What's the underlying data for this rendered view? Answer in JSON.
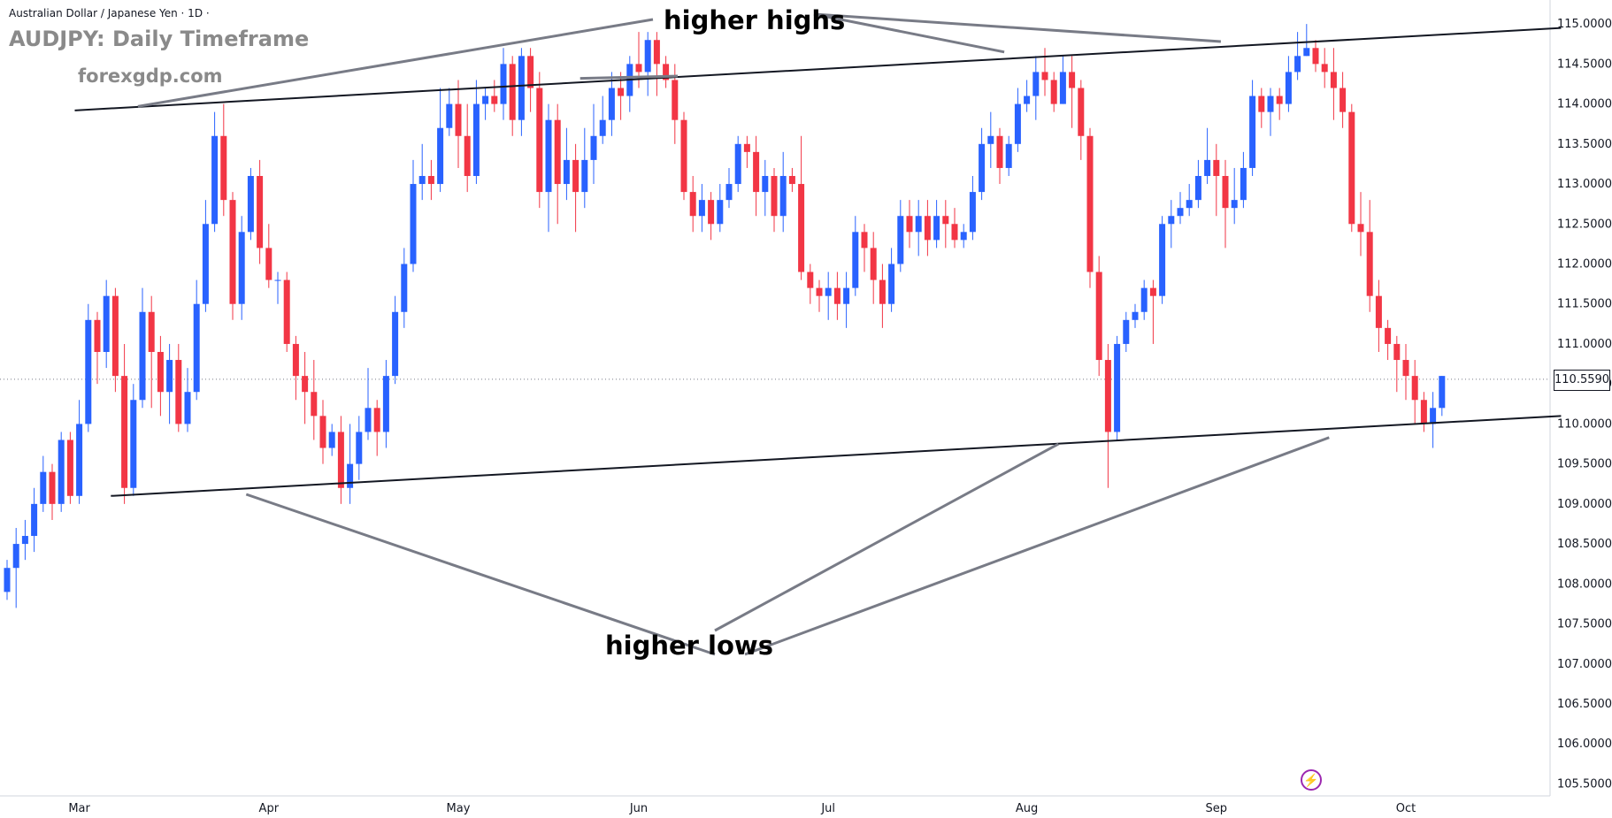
{
  "header": {
    "symbol_info": "Australian Dollar / Japanese Yen · 1D ·",
    "title": "AUDJPY: Daily Timeframe",
    "watermark": "forexgdp.com"
  },
  "annotations": {
    "higher_highs": "higher highs",
    "higher_lows": "higher lows"
  },
  "last_price_label": "110.5590",
  "colors": {
    "up": "#2962ff",
    "down": "#f23645",
    "trendline": "#131722",
    "pointer": "#787b86",
    "price_line": "#787b86"
  },
  "icon": "lightning-icon",
  "chart_data": {
    "type": "candlestick",
    "title": "AUDJPY: Daily Timeframe",
    "ylim": [
      105.35,
      115.3
    ],
    "x_tick_labels": [
      "Mar",
      "Apr",
      "May",
      "Jun",
      "Jul",
      "Aug",
      "Sep",
      "Oct"
    ],
    "x_tick_index": [
      8,
      29,
      50,
      70,
      91,
      113,
      134,
      155
    ],
    "y_ticks": [
      105.5,
      106.0,
      106.5,
      107.0,
      107.5,
      108.0,
      108.5,
      109.0,
      109.5,
      110.0,
      110.5,
      111.0,
      111.5,
      112.0,
      112.5,
      113.0,
      113.5,
      114.0,
      114.5,
      115.0
    ],
    "y_tick_labels": [
      "105.5000",
      "106.0000",
      "106.5000",
      "107.0000",
      "107.5000",
      "108.0000",
      "108.5000",
      "109.0000",
      "109.5000",
      "110.0000",
      "110.5000",
      "111.0000",
      "111.5000",
      "112.0000",
      "112.5000",
      "113.0000",
      "113.5000",
      "114.0000",
      "114.5000",
      "115.0000"
    ],
    "last_price": 110.559,
    "candles": [
      [
        107.9,
        108.2,
        107.8,
        108.3
      ],
      [
        108.2,
        108.5,
        107.7,
        108.7
      ],
      [
        108.5,
        108.6,
        108.3,
        108.8
      ],
      [
        108.6,
        109.0,
        108.4,
        109.2
      ],
      [
        109.0,
        109.4,
        108.9,
        109.6
      ],
      [
        109.4,
        109.0,
        108.8,
        109.5
      ],
      [
        109.0,
        109.8,
        108.9,
        109.9
      ],
      [
        109.8,
        109.1,
        109.0,
        109.9
      ],
      [
        109.1,
        110.0,
        109.0,
        110.3
      ],
      [
        110.0,
        111.3,
        109.9,
        111.5
      ],
      [
        111.3,
        110.9,
        110.5,
        111.4
      ],
      [
        110.9,
        111.6,
        110.7,
        111.8
      ],
      [
        111.6,
        110.6,
        110.4,
        111.7
      ],
      [
        110.6,
        109.2,
        109.0,
        111.0
      ],
      [
        109.2,
        110.3,
        109.1,
        110.5
      ],
      [
        110.3,
        111.4,
        110.2,
        111.7
      ],
      [
        111.4,
        110.9,
        110.2,
        111.6
      ],
      [
        110.9,
        110.4,
        110.1,
        111.1
      ],
      [
        110.4,
        110.8,
        110.0,
        111.0
      ],
      [
        110.8,
        110.0,
        109.9,
        111.0
      ],
      [
        110.0,
        110.4,
        109.9,
        110.7
      ],
      [
        110.4,
        111.5,
        110.3,
        111.8
      ],
      [
        111.5,
        112.5,
        111.4,
        112.8
      ],
      [
        112.5,
        113.6,
        112.4,
        113.9
      ],
      [
        113.6,
        112.8,
        112.6,
        114.0
      ],
      [
        112.8,
        111.5,
        111.3,
        112.9
      ],
      [
        111.5,
        112.4,
        111.3,
        112.6
      ],
      [
        112.4,
        113.1,
        112.3,
        113.2
      ],
      [
        113.1,
        112.2,
        112.0,
        113.3
      ],
      [
        112.2,
        111.8,
        111.7,
        112.5
      ],
      [
        111.8,
        111.8,
        111.5,
        111.9
      ],
      [
        111.8,
        111.0,
        110.9,
        111.9
      ],
      [
        111.0,
        110.6,
        110.3,
        111.1
      ],
      [
        110.6,
        110.4,
        110.0,
        110.9
      ],
      [
        110.4,
        110.1,
        109.8,
        110.8
      ],
      [
        110.1,
        109.7,
        109.5,
        110.3
      ],
      [
        109.7,
        109.9,
        109.6,
        110.0
      ],
      [
        109.9,
        109.2,
        109.0,
        110.1
      ],
      [
        109.2,
        109.5,
        109.0,
        110.0
      ],
      [
        109.5,
        109.9,
        109.3,
        110.1
      ],
      [
        109.9,
        110.2,
        109.8,
        110.7
      ],
      [
        110.2,
        109.9,
        109.6,
        110.3
      ],
      [
        109.9,
        110.6,
        109.7,
        110.8
      ],
      [
        110.6,
        111.4,
        110.5,
        111.6
      ],
      [
        111.4,
        112.0,
        111.2,
        112.2
      ],
      [
        112.0,
        113.0,
        111.9,
        113.3
      ],
      [
        113.0,
        113.1,
        112.8,
        113.5
      ],
      [
        113.1,
        113.0,
        112.8,
        113.3
      ],
      [
        113.0,
        113.7,
        112.9,
        114.2
      ],
      [
        113.7,
        114.0,
        113.6,
        114.2
      ],
      [
        114.0,
        113.6,
        113.2,
        114.3
      ],
      [
        113.6,
        113.1,
        112.9,
        114.0
      ],
      [
        113.1,
        114.0,
        113.0,
        114.3
      ],
      [
        114.0,
        114.1,
        113.8,
        114.2
      ],
      [
        114.1,
        114.0,
        113.9,
        114.3
      ],
      [
        114.0,
        114.5,
        113.8,
        114.7
      ],
      [
        114.5,
        113.8,
        113.6,
        114.6
      ],
      [
        113.8,
        114.6,
        113.6,
        114.7
      ],
      [
        114.6,
        114.2,
        113.9,
        114.7
      ],
      [
        114.2,
        112.9,
        112.7,
        114.4
      ],
      [
        112.9,
        113.8,
        112.4,
        114.0
      ],
      [
        113.8,
        113.0,
        112.5,
        114.0
      ],
      [
        113.0,
        113.3,
        112.8,
        113.7
      ],
      [
        113.3,
        112.9,
        112.4,
        113.5
      ],
      [
        112.9,
        113.3,
        112.7,
        113.7
      ],
      [
        113.3,
        113.6,
        113.0,
        114.0
      ],
      [
        113.6,
        113.8,
        113.5,
        114.1
      ],
      [
        113.8,
        114.2,
        113.6,
        114.4
      ],
      [
        114.2,
        114.1,
        113.8,
        114.4
      ],
      [
        114.1,
        114.5,
        113.9,
        114.6
      ],
      [
        114.5,
        114.4,
        114.2,
        114.9
      ],
      [
        114.4,
        114.8,
        114.1,
        114.9
      ],
      [
        114.8,
        114.5,
        114.1,
        114.9
      ],
      [
        114.5,
        114.3,
        114.2,
        114.6
      ],
      [
        114.3,
        113.8,
        113.5,
        114.5
      ],
      [
        113.8,
        112.9,
        112.8,
        113.9
      ],
      [
        112.9,
        112.6,
        112.4,
        113.1
      ],
      [
        112.6,
        112.8,
        112.4,
        113.0
      ],
      [
        112.8,
        112.5,
        112.3,
        112.9
      ],
      [
        112.5,
        112.8,
        112.4,
        113.0
      ],
      [
        112.8,
        113.0,
        112.7,
        113.2
      ],
      [
        113.0,
        113.5,
        112.9,
        113.6
      ],
      [
        113.5,
        113.4,
        113.2,
        113.6
      ],
      [
        113.4,
        112.9,
        112.6,
        113.6
      ],
      [
        112.9,
        113.1,
        112.6,
        113.3
      ],
      [
        113.1,
        112.6,
        112.4,
        113.2
      ],
      [
        112.6,
        113.1,
        112.4,
        113.4
      ],
      [
        113.1,
        113.0,
        112.9,
        113.2
      ],
      [
        113.0,
        111.9,
        111.8,
        113.6
      ],
      [
        111.9,
        111.7,
        111.5,
        112.0
      ],
      [
        111.7,
        111.6,
        111.4,
        111.8
      ],
      [
        111.6,
        111.7,
        111.3,
        111.9
      ],
      [
        111.7,
        111.5,
        111.3,
        111.9
      ],
      [
        111.5,
        111.7,
        111.2,
        111.9
      ],
      [
        111.7,
        112.4,
        111.6,
        112.6
      ],
      [
        112.4,
        112.2,
        111.9,
        112.5
      ],
      [
        112.2,
        111.8,
        111.5,
        112.4
      ],
      [
        111.8,
        111.5,
        111.2,
        112.0
      ],
      [
        111.5,
        112.0,
        111.4,
        112.2
      ],
      [
        112.0,
        112.6,
        111.9,
        112.8
      ],
      [
        112.6,
        112.4,
        112.2,
        112.8
      ],
      [
        112.4,
        112.6,
        112.1,
        112.8
      ],
      [
        112.6,
        112.3,
        112.1,
        112.8
      ],
      [
        112.3,
        112.6,
        112.2,
        112.8
      ],
      [
        112.6,
        112.5,
        112.2,
        112.8
      ],
      [
        112.5,
        112.3,
        112.2,
        112.7
      ],
      [
        112.3,
        112.4,
        112.2,
        112.5
      ],
      [
        112.4,
        112.9,
        112.3,
        113.1
      ],
      [
        112.9,
        113.5,
        112.8,
        113.7
      ],
      [
        113.5,
        113.6,
        113.2,
        113.9
      ],
      [
        113.6,
        113.2,
        113.0,
        113.7
      ],
      [
        113.2,
        113.5,
        113.1,
        113.6
      ],
      [
        113.5,
        114.0,
        113.4,
        114.2
      ],
      [
        114.0,
        114.1,
        113.9,
        114.3
      ],
      [
        114.1,
        114.4,
        113.8,
        114.6
      ],
      [
        114.4,
        114.3,
        114.1,
        114.7
      ],
      [
        114.3,
        114.0,
        113.9,
        114.4
      ],
      [
        114.0,
        114.4,
        114.0,
        114.6
      ],
      [
        114.4,
        114.2,
        113.7,
        114.6
      ],
      [
        114.2,
        113.6,
        113.3,
        114.3
      ],
      [
        113.6,
        111.9,
        111.7,
        113.7
      ],
      [
        111.9,
        110.8,
        110.6,
        112.1
      ],
      [
        110.8,
        109.9,
        109.2,
        111.0
      ],
      [
        109.9,
        111.0,
        109.8,
        111.1
      ],
      [
        111.0,
        111.3,
        110.9,
        111.4
      ],
      [
        111.3,
        111.4,
        111.2,
        111.5
      ],
      [
        111.4,
        111.7,
        111.3,
        111.8
      ],
      [
        111.7,
        111.6,
        111.0,
        111.8
      ],
      [
        111.6,
        112.5,
        111.5,
        112.6
      ],
      [
        112.5,
        112.6,
        112.2,
        112.8
      ],
      [
        112.6,
        112.7,
        112.5,
        112.9
      ],
      [
        112.7,
        112.8,
        112.6,
        113.0
      ],
      [
        112.8,
        113.1,
        112.7,
        113.3
      ],
      [
        113.1,
        113.3,
        113.0,
        113.7
      ],
      [
        113.3,
        113.1,
        112.6,
        113.5
      ],
      [
        113.1,
        112.7,
        112.2,
        113.3
      ],
      [
        112.7,
        112.8,
        112.5,
        113.2
      ],
      [
        112.8,
        113.2,
        112.7,
        113.4
      ],
      [
        113.2,
        114.1,
        113.1,
        114.3
      ],
      [
        114.1,
        113.9,
        113.7,
        114.2
      ],
      [
        113.9,
        114.1,
        113.6,
        114.2
      ],
      [
        114.1,
        114.0,
        113.8,
        114.2
      ],
      [
        114.0,
        114.4,
        113.9,
        114.6
      ],
      [
        114.4,
        114.6,
        114.3,
        114.9
      ],
      [
        114.6,
        114.7,
        114.6,
        115.0
      ],
      [
        114.7,
        114.5,
        114.4,
        114.8
      ],
      [
        114.5,
        114.4,
        114.2,
        114.7
      ],
      [
        114.4,
        114.2,
        113.8,
        114.7
      ],
      [
        114.2,
        113.9,
        113.7,
        114.4
      ],
      [
        113.9,
        112.5,
        112.4,
        114.0
      ],
      [
        112.5,
        112.4,
        112.1,
        112.9
      ],
      [
        112.4,
        111.6,
        111.4,
        112.8
      ],
      [
        111.6,
        111.2,
        110.9,
        111.8
      ],
      [
        111.2,
        111.0,
        110.8,
        111.3
      ],
      [
        111.0,
        110.8,
        110.4,
        111.1
      ],
      [
        110.8,
        110.6,
        110.3,
        111.0
      ],
      [
        110.6,
        110.3,
        110.0,
        110.8
      ],
      [
        110.3,
        110.0,
        109.9,
        110.4
      ],
      [
        110.0,
        110.2,
        109.7,
        110.4
      ],
      [
        110.2,
        110.6,
        110.1,
        110.6
      ]
    ]
  }
}
